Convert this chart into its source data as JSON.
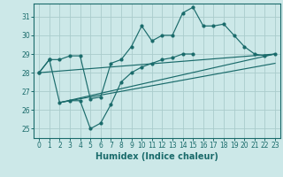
{
  "xlabel": "Humidex (Indice chaleur)",
  "background_color": "#cce8e8",
  "grid_color": "#aacccc",
  "line_color": "#1a6b6b",
  "xlim": [
    -0.5,
    23.5
  ],
  "ylim": [
    24.5,
    31.7
  ],
  "xticks": [
    0,
    1,
    2,
    3,
    4,
    5,
    6,
    7,
    8,
    9,
    10,
    11,
    12,
    13,
    14,
    15,
    16,
    17,
    18,
    19,
    20,
    21,
    22,
    23
  ],
  "yticks": [
    25,
    26,
    27,
    28,
    29,
    30,
    31
  ],
  "line1_x": [
    0,
    1,
    2,
    3,
    4,
    5,
    6,
    7,
    8,
    9,
    10,
    11,
    12,
    13,
    14,
    15,
    16,
    17,
    18,
    19,
    20,
    21,
    22,
    23
  ],
  "line1_y": [
    28.0,
    28.7,
    28.7,
    28.9,
    28.9,
    26.6,
    26.7,
    28.5,
    28.7,
    29.4,
    30.5,
    29.7,
    30.0,
    30.0,
    31.2,
    31.5,
    30.5,
    30.5,
    30.6,
    30.0,
    29.4,
    29.0,
    28.9,
    29.0
  ],
  "line2_x": [
    0,
    1,
    2,
    3,
    4,
    5,
    6,
    7,
    8,
    9,
    10,
    11,
    12,
    13,
    14,
    15
  ],
  "line2_y": [
    28.0,
    28.7,
    26.4,
    26.5,
    26.5,
    25.0,
    25.3,
    26.3,
    27.5,
    28.0,
    28.3,
    28.5,
    28.7,
    28.8,
    29.0,
    29.0
  ],
  "line3_x": [
    2,
    23
  ],
  "line3_y": [
    26.4,
    29.0
  ],
  "line4_x": [
    2,
    23
  ],
  "line4_y": [
    26.4,
    28.5
  ],
  "line5_x": [
    0,
    23
  ],
  "line5_y": [
    28.0,
    29.0
  ]
}
